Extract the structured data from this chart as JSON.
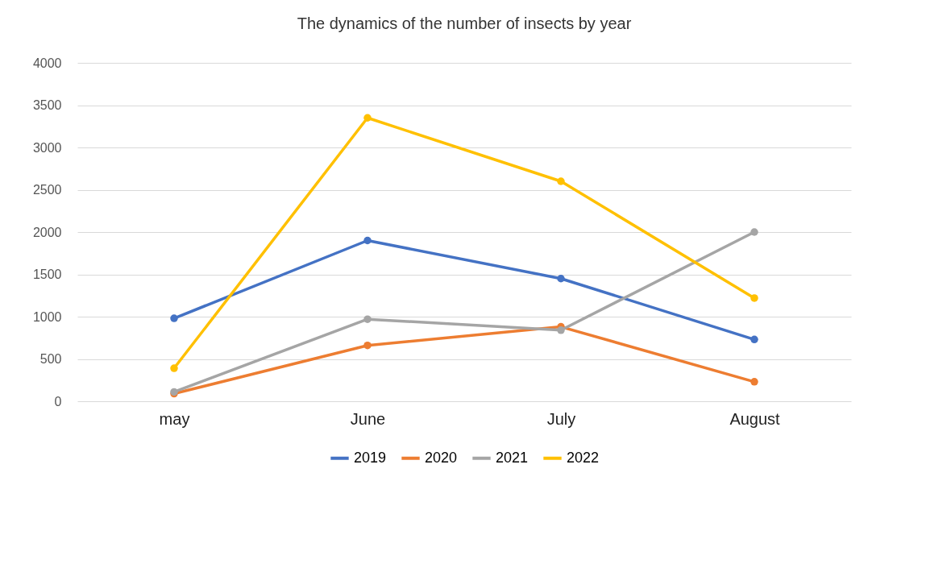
{
  "chart_data": {
    "type": "line",
    "title": "The dynamics of the number of insects by year",
    "categories": [
      "may",
      "June",
      "July",
      "August"
    ],
    "series": [
      {
        "name": "2019",
        "color": "#4472c4",
        "values": [
          980,
          1900,
          1450,
          730
        ]
      },
      {
        "name": "2020",
        "color": "#ed7d31",
        "values": [
          90,
          660,
          880,
          230
        ]
      },
      {
        "name": "2021",
        "color": "#a5a5a5",
        "values": [
          110,
          970,
          840,
          2000
        ]
      },
      {
        "name": "2022",
        "color": "#ffc000",
        "values": [
          390,
          3350,
          2600,
          1220
        ]
      }
    ],
    "ylim": [
      0,
      4000
    ],
    "yticks": [
      0,
      500,
      1000,
      1500,
      2000,
      2500,
      3000,
      3500,
      4000
    ],
    "grid": "y",
    "legend": "bottom",
    "marker": "circle",
    "line_style": "solid"
  }
}
